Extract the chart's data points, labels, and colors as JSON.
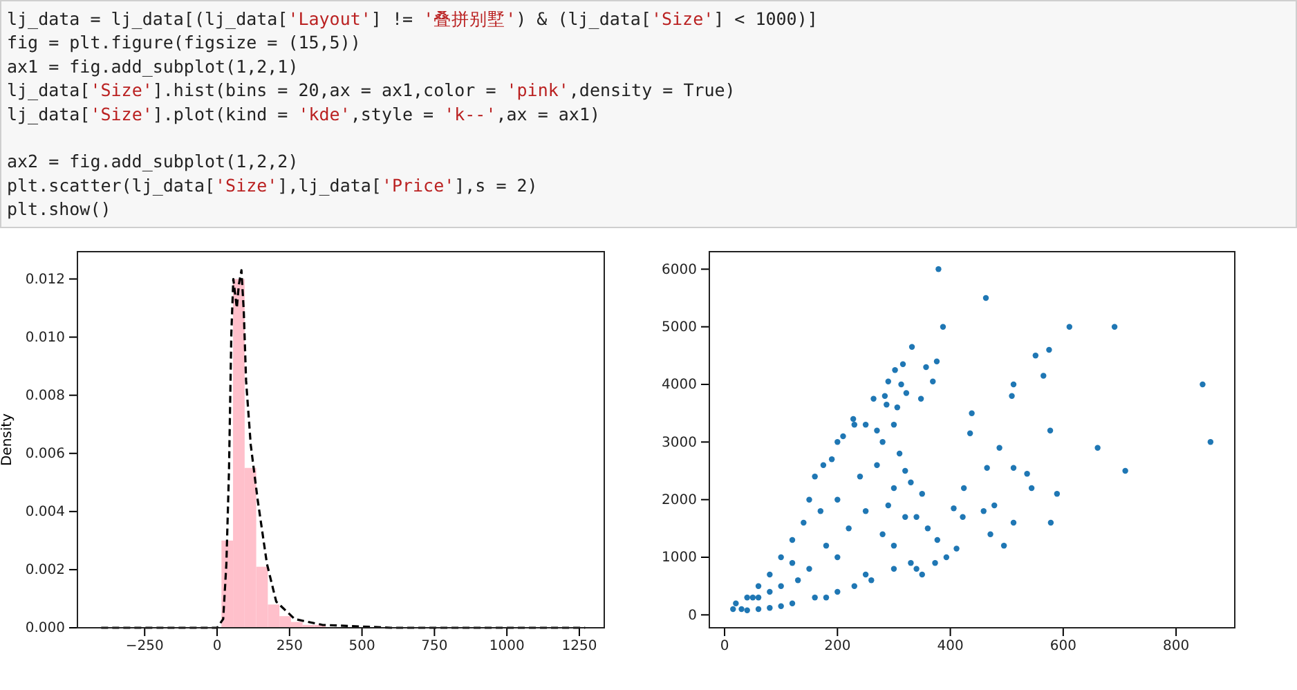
{
  "chart_data": [
    {
      "type": "other",
      "annotations": [
        "lj_data = lj_data[(lj_data['Layout'] != '叠拼别墅') & (lj_data['Size'] < 1000)]\nfig = plt.figure(figsize = (15,5))\nax1 = fig.add_subplot(1,2,1)\nlj_data['Size'].hist(bins = 20,ax = ax1,color = 'pink',density = True)\nlj_data['Size'].plot(kind = 'kde',style = 'k--',ax = ax1)\n\nax2 = fig.add_subplot(1,2,2)\nplt.scatter(lj_data['Size'],lj_data['Price'],s = 2)\nplt.show()"
      ]
    },
    {
      "type": "histogram",
      "ylabel": "Density",
      "xlim": [
        -482,
        1336
      ],
      "ylim": [
        0,
        0.01294
      ],
      "xticks": [
        {
          "value": -250,
          "label": "−250"
        },
        0,
        250,
        500,
        750,
        1000,
        1250
      ],
      "yticks": [
        {
          "value": 0,
          "label": "0.000"
        },
        0.002,
        0.004,
        0.006,
        0.008,
        {
          "value": 0.01,
          "label": "0.010"
        },
        0.012
      ],
      "series": [
        {
          "type": "histogram",
          "color": "#ffc0cb",
          "bins": [
            15,
            55,
            95,
            135,
            175,
            215,
            255,
            295,
            335,
            375,
            415,
            455,
            495,
            535,
            575,
            615,
            655,
            695,
            735,
            775,
            815
          ],
          "values": [
            0.003,
            0.012,
            0.0055,
            0.0021,
            0.0008,
            0.0004,
            0.0002,
            0.0001,
            0.0001,
            0,
            0,
            0,
            0,
            0,
            0,
            0,
            0,
            0,
            0,
            0
          ]
        },
        {
          "type": "line",
          "color": "#000000",
          "line_style": "dashed",
          "x": [
            -400,
            -200,
            0,
            21,
            32,
            41,
            49,
            56,
            62,
            68,
            75,
            84,
            92,
            100,
            116,
            140,
            172,
            204,
            268,
            363,
            600,
            900,
            1270
          ],
          "values": [
            0,
            0,
            0,
            0.0003,
            0.0022,
            0.0054,
            0.0101,
            0.012,
            0.0115,
            0.011,
            0.0118,
            0.0123,
            0.0109,
            0.0085,
            0.0063,
            0.0044,
            0.0022,
            0.0009,
            0.0003,
            0.0001,
            0,
            0,
            0
          ]
        }
      ]
    },
    {
      "type": "scatter",
      "color": "#1f77b4",
      "marker": "circle",
      "xlim": [
        -27,
        904
      ],
      "ylim": [
        -224,
        6304
      ],
      "xticks": [
        0,
        200,
        400,
        600,
        800
      ],
      "yticks": [
        0,
        1000,
        2000,
        3000,
        4000,
        5000,
        6000
      ],
      "x": [
        379,
        463,
        387,
        611,
        691,
        847,
        861,
        661,
        710,
        589,
        578,
        577,
        575,
        551,
        565,
        512,
        509,
        512,
        512,
        495,
        471,
        478,
        487,
        438,
        435,
        465,
        459,
        332,
        316,
        302,
        357,
        376,
        369,
        290,
        313,
        322,
        264,
        284,
        287,
        306,
        348,
        228,
        411,
        393,
        340,
        536,
        544,
        424,
        406,
        422,
        377,
        373,
        15,
        20,
        30,
        40,
        50,
        60,
        80,
        100,
        120,
        140,
        150,
        160,
        175,
        190,
        200,
        210,
        230,
        250,
        270,
        280,
        300,
        310,
        320,
        300,
        330,
        350,
        340,
        360,
        300,
        330,
        350,
        300,
        260,
        250,
        230,
        200,
        180,
        160,
        120,
        100,
        80,
        60,
        130,
        100,
        150,
        200,
        220,
        180,
        250,
        200,
        240,
        270,
        290,
        280,
        320,
        80,
        120,
        170,
        60,
        40
      ],
      "values": [
        6000,
        5500,
        5000,
        5000,
        5000,
        4000,
        3000,
        2900,
        2500,
        2100,
        1600,
        3200,
        4600,
        4500,
        4150,
        4000,
        3800,
        2550,
        1600,
        1200,
        1400,
        1900,
        2900,
        3500,
        3150,
        2550,
        1800,
        4650,
        4350,
        4250,
        4300,
        4400,
        4050,
        4050,
        4000,
        3850,
        3750,
        3800,
        3650,
        3600,
        3750,
        3400,
        1150,
        1000,
        800,
        2450,
        2200,
        2200,
        1850,
        1700,
        1300,
        900,
        100,
        200,
        100,
        80,
        300,
        500,
        700,
        1000,
        1300,
        1600,
        2000,
        2400,
        2600,
        2700,
        3000,
        3100,
        3300,
        3300,
        3200,
        3000,
        3300,
        2800,
        2500,
        2200,
        2300,
        2100,
        1700,
        1500,
        1200,
        900,
        700,
        800,
        600,
        700,
        500,
        400,
        300,
        300,
        200,
        150,
        120,
        100,
        600,
        500,
        800,
        1000,
        1500,
        1200,
        1800,
        2000,
        2400,
        2600,
        1900,
        1400,
        1700,
        400,
        900,
        1800,
        300,
        300
      ]
    }
  ]
}
